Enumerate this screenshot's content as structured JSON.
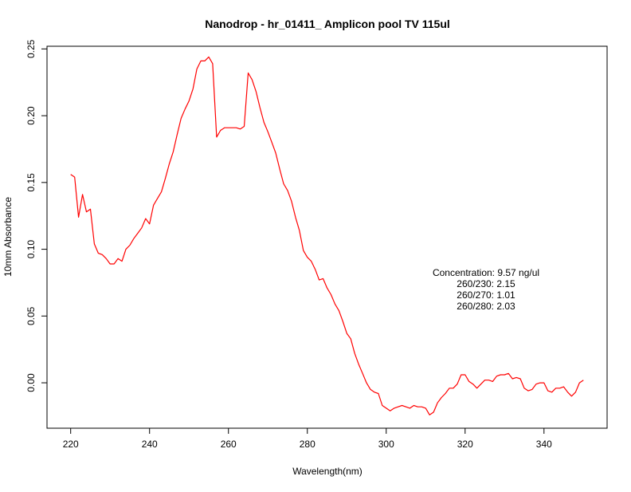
{
  "chart_data": {
    "type": "line",
    "title": "Nanodrop - hr_01411_ Amplicon pool TV 115ul",
    "xlabel": "Wavelength(nm)",
    "ylabel": "10mm Absorbance",
    "xlim": [
      214,
      356
    ],
    "ylim": [
      -0.034,
      0.252
    ],
    "x_ticks": [
      220,
      240,
      260,
      280,
      300,
      320,
      340
    ],
    "y_ticks": [
      0.0,
      0.05,
      0.1,
      0.15,
      0.2,
      0.25
    ],
    "y_tick_labels": [
      "0.00",
      "0.05",
      "0.10",
      "0.15",
      "0.20",
      "0.25"
    ],
    "grid": false,
    "series": [
      {
        "color": "#ff0000",
        "x": [
          220,
          221,
          222,
          223,
          224,
          225,
          226,
          227,
          228,
          229,
          230,
          231,
          232,
          233,
          234,
          235,
          236,
          237,
          238,
          239,
          240,
          241,
          242,
          243,
          244,
          245,
          246,
          247,
          248,
          249,
          250,
          251,
          252,
          253,
          254,
          255,
          256,
          257,
          258,
          259,
          260,
          261,
          262,
          263,
          264,
          265,
          266,
          267,
          268,
          269,
          270,
          271,
          272,
          273,
          274,
          275,
          276,
          277,
          278,
          279,
          280,
          281,
          282,
          283,
          284,
          285,
          286,
          287,
          288,
          289,
          290,
          291,
          292,
          293,
          294,
          295,
          296,
          297,
          298,
          299,
          300,
          301,
          302,
          303,
          304,
          305,
          306,
          307,
          308,
          309,
          310,
          311,
          312,
          313,
          314,
          315,
          316,
          317,
          318,
          319,
          320,
          321,
          322,
          323,
          324,
          325,
          326,
          327,
          328,
          329,
          330,
          331,
          332,
          333,
          334,
          335,
          336,
          337,
          338,
          339,
          340,
          341,
          342,
          343,
          344,
          345,
          346,
          347,
          348,
          349,
          350
        ],
        "y": [
          0.156,
          0.154,
          0.124,
          0.141,
          0.128,
          0.13,
          0.104,
          0.097,
          0.096,
          0.093,
          0.089,
          0.089,
          0.093,
          0.091,
          0.1,
          0.103,
          0.108,
          0.112,
          0.116,
          0.123,
          0.119,
          0.133,
          0.138,
          0.143,
          0.153,
          0.164,
          0.173,
          0.186,
          0.198,
          0.205,
          0.211,
          0.22,
          0.235,
          0.241,
          0.241,
          0.244,
          0.239,
          0.184,
          0.189,
          0.191,
          0.191,
          0.191,
          0.191,
          0.19,
          0.192,
          0.232,
          0.227,
          0.218,
          0.206,
          0.195,
          0.188,
          0.18,
          0.172,
          0.16,
          0.149,
          0.144,
          0.136,
          0.124,
          0.114,
          0.099,
          0.094,
          0.091,
          0.085,
          0.077,
          0.078,
          0.071,
          0.066,
          0.059,
          0.054,
          0.046,
          0.037,
          0.033,
          0.022,
          0.014,
          0.007,
          0.0,
          -0.005,
          -0.007,
          -0.008,
          -0.017,
          -0.019,
          -0.021,
          -0.019,
          -0.018,
          -0.017,
          -0.018,
          -0.019,
          -0.017,
          -0.018,
          -0.018,
          -0.019,
          -0.024,
          -0.022,
          -0.015,
          -0.011,
          -0.008,
          -0.004,
          -0.004,
          -0.001,
          0.006,
          0.006,
          0.001,
          -0.001,
          -0.004,
          -0.001,
          0.002,
          0.002,
          0.001,
          0.005,
          0.006,
          0.006,
          0.007,
          0.003,
          0.004,
          0.003,
          -0.004,
          -0.006,
          -0.005,
          -0.001,
          0.0,
          0.0,
          -0.006,
          -0.007,
          -0.004,
          -0.004,
          -0.003,
          -0.007,
          -0.01,
          -0.007,
          0.0,
          0.002
        ]
      }
    ],
    "annotations": [
      "Concentration: 9.57 ng/ul",
      "260/230: 2.15",
      "260/270: 1.01",
      "260/280: 2.03"
    ]
  }
}
